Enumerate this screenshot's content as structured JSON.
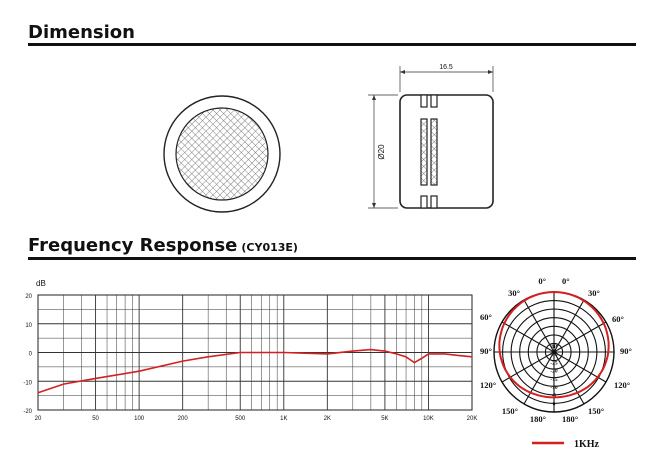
{
  "sections": {
    "dimension_title": "Dimension",
    "frequency_title": "Frequency Response",
    "frequency_model": "(CY013E)"
  },
  "dimension": {
    "width_label": "16.5",
    "diameter_label": "Ø20"
  },
  "chart_data": [
    {
      "type": "line",
      "title": "",
      "ylabel": "dB",
      "y_tick_labels": [
        "20",
        "10",
        "0",
        "-10",
        "-20"
      ],
      "x_tick_labels": [
        "20",
        "50",
        "100",
        "200",
        "500",
        "1K",
        "2K",
        "5K",
        "10K",
        "20K"
      ],
      "xscale": "log",
      "xlim": [
        20,
        20000
      ],
      "ylim": [
        -20,
        20
      ],
      "grid": true,
      "series": [
        {
          "color": "#d42020",
          "x": [
            20,
            30,
            50,
            100,
            200,
            300,
            500,
            1000,
            2000,
            3000,
            4000,
            5000,
            6000,
            7000,
            8000,
            9000,
            10000,
            11000,
            13000,
            16000,
            20000
          ],
          "y": [
            -14,
            -11,
            -9,
            -6.5,
            -3,
            -1.5,
            0,
            0,
            -0.5,
            0.5,
            1,
            0.5,
            -0.5,
            -1.5,
            -3.5,
            -2,
            -0.5,
            -0.5,
            -0.5,
            -1,
            -1.5
          ]
        }
      ]
    },
    {
      "type": "polar",
      "angle_labels": [
        "0°",
        "0°",
        "30°",
        "30°",
        "60°",
        "60°",
        "90°",
        "90°",
        "120°",
        "120°",
        "150°",
        "150°",
        "180°",
        "180°"
      ],
      "ring_labels": [
        "dB",
        "-30",
        "-25",
        "-20",
        "-15",
        "-10",
        "-5",
        "0"
      ],
      "legend_label": "1KHz",
      "legend_color": "#d42020",
      "pattern": "cardioid"
    }
  ]
}
